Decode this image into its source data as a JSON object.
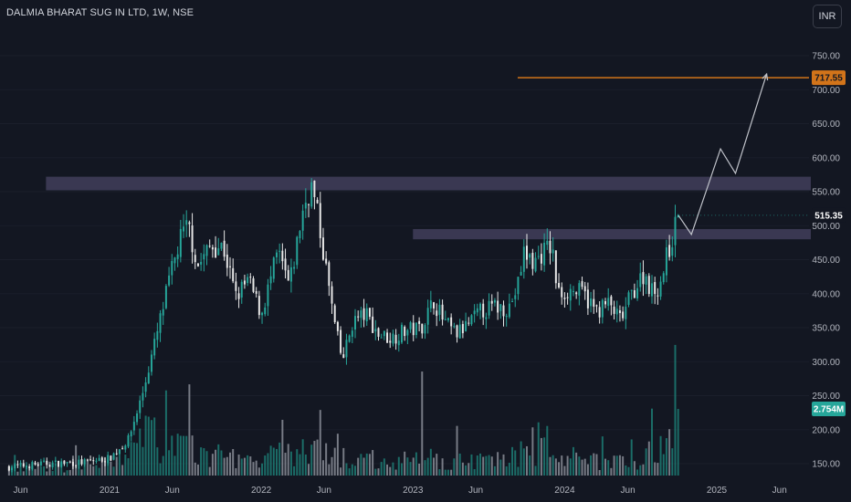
{
  "header": {
    "symbol_title": "DALMIA BHARAT SUG IN LTD, 1W, NSE",
    "currency_button": "INR"
  },
  "colors": {
    "background": "#131722",
    "up": "#26a69a",
    "down": "#e8e8e8",
    "volume_up": "#1d7d74",
    "volume_down": "#8a8d96",
    "resistance_zone": "#3c3a55",
    "target_line": "#d2741a",
    "projection_path": "#c0c3ca",
    "axis_text": "#b2b5be"
  },
  "chart_data": {
    "type": "candlestick",
    "symbol": "DALMIA BHARAT SUG IN LTD",
    "interval": "1W",
    "exchange": "NSE",
    "y_axis": {
      "ticks": [
        "750.00",
        "700.00",
        "650.00",
        "600.00",
        "550.00",
        "500.00",
        "450.00",
        "400.00",
        "350.00",
        "300.00",
        "250.00",
        "200.00",
        "150.00"
      ],
      "tick_values": [
        750,
        700,
        650,
        600,
        550,
        500,
        450,
        400,
        350,
        300,
        250,
        200,
        150
      ],
      "range": [
        135,
        790
      ]
    },
    "x_axis": {
      "labels": [
        "Jun",
        "2021",
        "Jun",
        "2022",
        "Jun",
        "2023",
        "Jun",
        "2024",
        "Jun",
        "2025",
        "Jun"
      ],
      "dates": [
        "2020-06-01",
        "2021-01-01",
        "2021-06-01",
        "2022-01-01",
        "2022-06-01",
        "2023-01-01",
        "2023-06-01",
        "2024-01-01",
        "2024-06-01",
        "2025-01-01",
        "2025-06-01"
      ]
    },
    "last_price": {
      "value": 515.35,
      "label": "515.35"
    },
    "target_price": {
      "value": 717.55,
      "label": "717.55"
    },
    "last_volume": {
      "label": "2.754M"
    },
    "price_anchors": [
      [
        "2020-05-01",
        145
      ],
      [
        "2020-08-01",
        150
      ],
      [
        "2020-11-01",
        152
      ],
      [
        "2021-01-01",
        158
      ],
      [
        "2021-02-15",
        185
      ],
      [
        "2021-03-20",
        250
      ],
      [
        "2021-04-25",
        340
      ],
      [
        "2021-05-25",
        420
      ],
      [
        "2021-06-20",
        480
      ],
      [
        "2021-07-10",
        500
      ],
      [
        "2021-08-01",
        440
      ],
      [
        "2021-09-01",
        470
      ],
      [
        "2021-10-01",
        470
      ],
      [
        "2021-11-01",
        395
      ],
      [
        "2021-12-01",
        420
      ],
      [
        "2022-01-01",
        370
      ],
      [
        "2022-02-10",
        460
      ],
      [
        "2022-03-10",
        410
      ],
      [
        "2022-04-10",
        520
      ],
      [
        "2022-05-01",
        560
      ],
      [
        "2022-05-15",
        520
      ],
      [
        "2022-06-05",
        440
      ],
      [
        "2022-06-25",
        360
      ],
      [
        "2022-07-15",
        300
      ],
      [
        "2022-08-10",
        360
      ],
      [
        "2022-09-10",
        370
      ],
      [
        "2022-10-10",
        340
      ],
      [
        "2022-11-10",
        335
      ],
      [
        "2022-12-10",
        345
      ],
      [
        "2023-01-20",
        350
      ],
      [
        "2023-02-20",
        390
      ],
      [
        "2023-03-15",
        360
      ],
      [
        "2023-04-15",
        340
      ],
      [
        "2023-05-15",
        355
      ],
      [
        "2023-06-15",
        375
      ],
      [
        "2023-07-15",
        380
      ],
      [
        "2023-08-20",
        380
      ],
      [
        "2023-09-10",
        410
      ],
      [
        "2023-09-25",
        460
      ],
      [
        "2023-10-20",
        445
      ],
      [
        "2023-11-10",
        462
      ],
      [
        "2023-12-01",
        470
      ],
      [
        "2023-12-15",
        400
      ],
      [
        "2024-01-15",
        405
      ],
      [
        "2024-02-15",
        400
      ],
      [
        "2024-03-15",
        375
      ],
      [
        "2024-04-15",
        385
      ],
      [
        "2024-05-15",
        360
      ],
      [
        "2024-06-10",
        400
      ],
      [
        "2024-07-10",
        430
      ],
      [
        "2024-08-01",
        400
      ],
      [
        "2024-08-20",
        420
      ],
      [
        "2024-09-05",
        460
      ],
      [
        "2024-09-20",
        490
      ],
      [
        "2024-10-01",
        515.35
      ]
    ],
    "volume_anchors": [
      [
        "2020-05-01",
        0.3
      ],
      [
        "2020-12-01",
        0.4
      ],
      [
        "2021-02-01",
        0.7
      ],
      [
        "2021-04-01",
        1.6
      ],
      [
        "2021-06-01",
        1.3
      ],
      [
        "2021-09-01",
        0.8
      ],
      [
        "2022-01-01",
        0.7
      ],
      [
        "2022-04-15",
        1.0
      ],
      [
        "2022-08-01",
        0.7
      ],
      [
        "2023-01-01",
        0.6
      ],
      [
        "2023-06-01",
        0.6
      ],
      [
        "2023-11-01",
        1.0
      ],
      [
        "2024-03-01",
        0.6
      ],
      [
        "2024-07-01",
        0.7
      ],
      [
        "2024-10-01",
        1.6
      ]
    ],
    "volume_spikes": [
      [
        "2023-01-23",
        4.3
      ],
      [
        "2024-09-23",
        5.4
      ],
      [
        "2024-09-30",
        2.754
      ],
      [
        "2023-10-30",
        2.2
      ],
      [
        "2021-04-19",
        2.4
      ]
    ],
    "zones": [
      {
        "name": "upper-resistance",
        "from": "2020-08-01",
        "to": "2025-09-30",
        "low": 552,
        "high": 572
      },
      {
        "name": "lower-resistance",
        "from": "2023-01-01",
        "to": "2025-09-30",
        "low": 480,
        "high": 495
      }
    ],
    "target_line_start": "2023-09-10",
    "projection_path": [
      [
        "2024-10-01",
        515
      ],
      [
        "2024-11-01",
        487
      ],
      [
        "2025-01-10",
        613
      ],
      [
        "2025-02-15",
        577
      ],
      [
        "2025-05-01",
        723
      ]
    ]
  }
}
